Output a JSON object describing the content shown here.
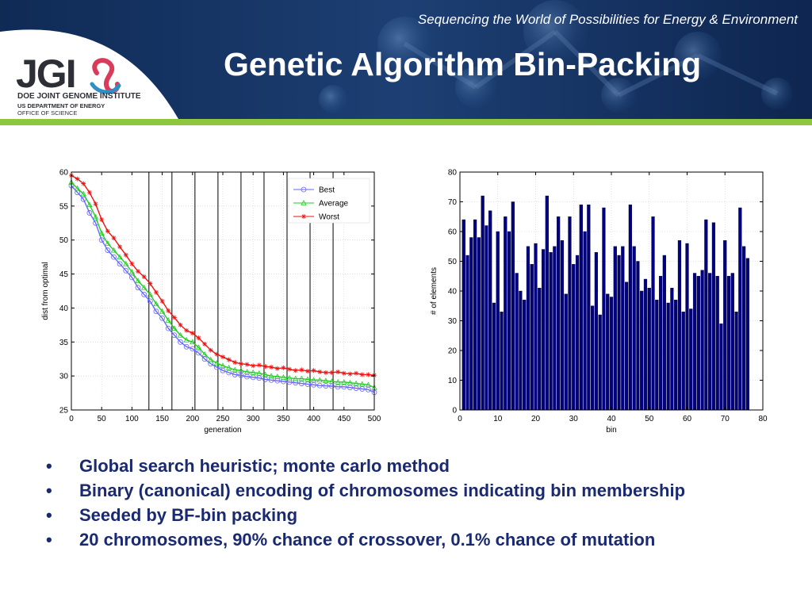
{
  "header": {
    "tagline": "Sequencing the World of Possibilities for Energy & Environment",
    "title": "Genetic Algorithm Bin-Packing"
  },
  "logo": {
    "text": "JGI",
    "line1": "DOE JOINT GENOME INSTITUTE",
    "line2": "US DEPARTMENT OF ENERGY",
    "line3": "OFFICE OF SCIENCE"
  },
  "colors": {
    "header_bg": "#15305e",
    "accent_green": "#8dc63f",
    "bullet_text": "#1a2a70",
    "bar_fill": "#000080",
    "best": "#6666ff",
    "average": "#22cc22",
    "worst": "#ee1111"
  },
  "bullets": [
    "Global search heuristic; monte carlo method",
    "Binary (canonical) encoding of chromosomes indicating bin membership",
    "Seeded by BF-bin packing",
    "20 chromosomes, 90% chance of crossover, 0.1% chance of mutation"
  ],
  "chart_data": [
    {
      "type": "line",
      "title": "",
      "xlabel": "generation",
      "ylabel": "dist from optimal",
      "xlim": [
        0,
        500
      ],
      "ylim": [
        25,
        60
      ],
      "xticks": [
        0,
        50,
        100,
        150,
        200,
        250,
        300,
        350,
        400,
        450,
        500
      ],
      "yticks": [
        25,
        30,
        35,
        40,
        45,
        50,
        55,
        60
      ],
      "legend_position": "top-right",
      "markers": [
        128,
        166,
        204,
        242,
        280,
        318,
        356,
        394,
        432
      ],
      "x": [
        0,
        10,
        20,
        30,
        40,
        50,
        60,
        70,
        80,
        90,
        100,
        110,
        120,
        130,
        140,
        150,
        160,
        170,
        180,
        190,
        200,
        210,
        220,
        230,
        240,
        250,
        260,
        270,
        280,
        290,
        300,
        310,
        320,
        330,
        340,
        350,
        360,
        370,
        380,
        390,
        400,
        410,
        420,
        430,
        440,
        450,
        460,
        470,
        480,
        490,
        500
      ],
      "series": [
        {
          "name": "Best",
          "marker": "circle",
          "color": "#6666ff",
          "values": [
            58,
            57,
            56,
            54,
            52.5,
            50,
            48.5,
            47.5,
            46.5,
            45.5,
            44.5,
            43,
            42,
            41,
            39.5,
            38.5,
            37,
            36,
            35,
            34.3,
            34,
            33.4,
            32.5,
            31.8,
            31.3,
            30.8,
            30.5,
            30.2,
            30.1,
            29.9,
            29.8,
            29.7,
            29.5,
            29.4,
            29.3,
            29.2,
            29.1,
            29.0,
            28.9,
            28.8,
            28.7,
            28.6,
            28.55,
            28.5,
            28.4,
            28.4,
            28.3,
            28.2,
            28.1,
            28.0,
            27.6
          ]
        },
        {
          "name": "Average",
          "marker": "triangle",
          "color": "#22cc22",
          "values": [
            58.5,
            57.6,
            56.8,
            55.2,
            53.4,
            51,
            49.5,
            48.5,
            47.5,
            46.5,
            45.3,
            44,
            43,
            42,
            40.6,
            39.5,
            38.2,
            37,
            36,
            35.3,
            35,
            34.2,
            33.2,
            32.4,
            31.9,
            31.5,
            31.2,
            30.9,
            30.8,
            30.6,
            30.5,
            30.4,
            30.2,
            30.0,
            29.9,
            29.8,
            29.7,
            29.6,
            29.6,
            29.5,
            29.4,
            29.4,
            29.3,
            29.2,
            29.1,
            29.1,
            29.0,
            28.9,
            28.8,
            28.7,
            28.3
          ]
        },
        {
          "name": "Worst",
          "marker": "star",
          "color": "#ee1111",
          "values": [
            59.5,
            59,
            58.3,
            57,
            55.3,
            53,
            51.3,
            50.3,
            49,
            47.8,
            46.5,
            45.4,
            44.6,
            43.6,
            42.3,
            41,
            39.6,
            38.6,
            37.5,
            36.7,
            36.3,
            35.6,
            34.7,
            33.8,
            33.2,
            32.8,
            32.4,
            32.0,
            31.8,
            31.7,
            31.5,
            31.6,
            31.4,
            31.3,
            31.1,
            31.2,
            31.0,
            30.8,
            30.9,
            30.7,
            30.8,
            30.6,
            30.5,
            30.5,
            30.6,
            30.4,
            30.3,
            30.4,
            30.2,
            30.2,
            30.1
          ]
        }
      ]
    },
    {
      "type": "bar",
      "title": "",
      "xlabel": "bin",
      "ylabel": "# of elements",
      "xlim": [
        0,
        80
      ],
      "ylim": [
        0,
        80
      ],
      "xticks": [
        0,
        10,
        20,
        30,
        40,
        50,
        60,
        70,
        80
      ],
      "yticks": [
        0,
        10,
        20,
        30,
        40,
        50,
        60,
        70,
        80
      ],
      "categories": [
        1,
        2,
        3,
        4,
        5,
        6,
        7,
        8,
        9,
        10,
        11,
        12,
        13,
        14,
        15,
        16,
        17,
        18,
        19,
        20,
        21,
        22,
        23,
        24,
        25,
        26,
        27,
        28,
        29,
        30,
        31,
        32,
        33,
        34,
        35,
        36,
        37,
        38,
        39,
        40,
        41,
        42,
        43,
        44,
        45,
        46,
        47,
        48,
        49,
        50,
        51,
        52,
        53,
        54,
        55,
        56,
        57,
        58,
        59,
        60,
        61,
        62,
        63,
        64,
        65,
        66,
        67,
        68,
        69,
        70,
        71,
        72,
        73,
        74,
        75,
        76,
        77
      ],
      "values": [
        64,
        52,
        58,
        64,
        58,
        72,
        62,
        67,
        36,
        60,
        33,
        65,
        60,
        70,
        46,
        40,
        37,
        55,
        49,
        56,
        41,
        54,
        72,
        53,
        55,
        65,
        57,
        39,
        65,
        49,
        52,
        69,
        60,
        69,
        35,
        53,
        32,
        68,
        39,
        38,
        55,
        52,
        55,
        43,
        69,
        55,
        50,
        40,
        44,
        41,
        65,
        37,
        45,
        52,
        36,
        41,
        37,
        57,
        33,
        56,
        34,
        46,
        45,
        47,
        64,
        46,
        63,
        45,
        29,
        57,
        45,
        46,
        33,
        68,
        55,
        51,
        0
      ]
    }
  ]
}
